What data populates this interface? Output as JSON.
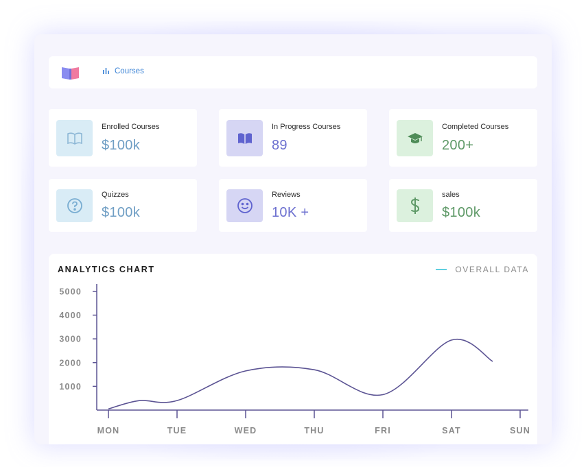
{
  "topbar": {
    "nav_label": "Courses"
  },
  "stats": [
    {
      "label": "Enrolled Courses",
      "value": "$100k",
      "icon": "book-open-icon",
      "tone": "blue"
    },
    {
      "label": "In Progress Courses",
      "value": "89",
      "icon": "book-icon",
      "tone": "purple"
    },
    {
      "label": "Completed Courses",
      "value": "200+",
      "icon": "graduation-cap-icon",
      "tone": "green"
    },
    {
      "label": "Quizzes",
      "value": "$100k",
      "icon": "question-circle-icon",
      "tone": "blue"
    },
    {
      "label": "Reviews",
      "value": "10K +",
      "icon": "smile-icon",
      "tone": "purple"
    },
    {
      "label": "sales",
      "value": "$100k",
      "icon": "dollar-icon",
      "tone": "green"
    }
  ],
  "colors": {
    "accent_blue": "#3d84d6",
    "line": "#5b5393",
    "legend": "#5fcfe0"
  },
  "chart_data": {
    "type": "line",
    "title": "ANALYTICS CHART",
    "categories": [
      "MON",
      "TUE",
      "WED",
      "THU",
      "FRI",
      "SAT",
      "SUN"
    ],
    "y_ticks": [
      "5000",
      "4000",
      "3000",
      "2000",
      "1000"
    ],
    "ylim": [
      0,
      5200
    ],
    "series": [
      {
        "name": "OVERALL DATA",
        "x": [
          0,
          0.45,
          1,
          2,
          3,
          4,
          5,
          5.6
        ],
        "values": [
          50,
          400,
          400,
          1650,
          1700,
          650,
          2950,
          2050
        ]
      }
    ],
    "grid": false,
    "legend_position": "top-right"
  }
}
